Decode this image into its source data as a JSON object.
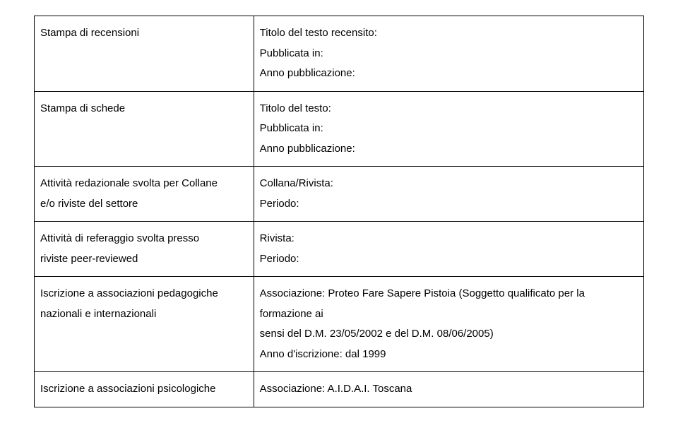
{
  "rows": [
    {
      "left_lines": [
        "Stampa di recensioni"
      ],
      "right_lines": [
        "Titolo del testo recensito:",
        "Pubblicata in:",
        "Anno pubblicazione:"
      ]
    },
    {
      "left_lines": [
        "Stampa di schede"
      ],
      "right_lines": [
        "Titolo del testo:",
        "Pubblicata in:",
        "Anno pubblicazione:"
      ]
    },
    {
      "left_lines": [
        "Attività redazionale svolta per Collane",
        "e/o riviste del settore"
      ],
      "right_lines": [
        "Collana/Rivista:",
        "Periodo:"
      ]
    },
    {
      "left_lines": [
        "Attività di  referaggio svolta presso",
        "riviste peer-reviewed"
      ],
      "right_lines": [
        "Rivista:",
        "Periodo:"
      ]
    },
    {
      "left_lines": [
        "Iscrizione a associazioni pedagogiche",
        "nazionali e internazionali"
      ],
      "right_lines": [
        "Associazione: Proteo Fare Sapere Pistoia (Soggetto qualificato per la formazione ai",
        "sensi del D.M. 23/05/2002 e del D.M. 08/06/2005)",
        "Anno d'iscrizione: dal 1999"
      ]
    },
    {
      "left_lines": [
        "Iscrizione a associazioni psicologiche"
      ],
      "right_lines": [
        "Associazione: A.I.D.A.I. Toscana"
      ]
    }
  ],
  "style": {
    "font_size_pt": 11,
    "border_color": "#000000",
    "background_color": "#ffffff",
    "text_color": "#000000",
    "left_col_width_pct": 36,
    "right_col_width_pct": 64
  }
}
